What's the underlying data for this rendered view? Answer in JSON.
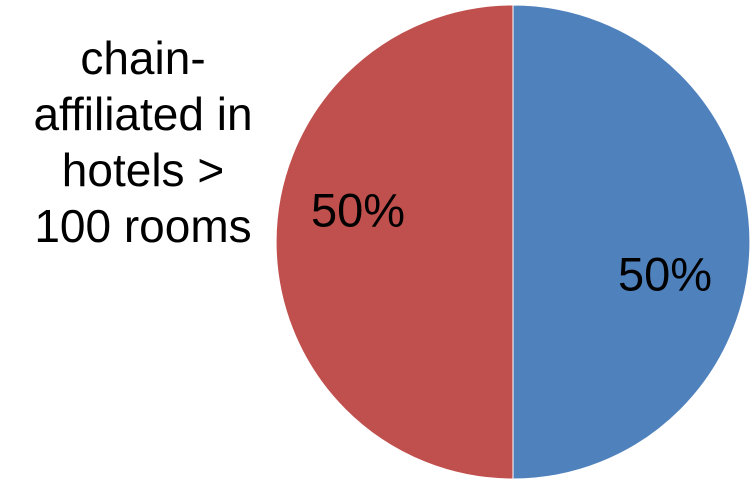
{
  "chart_data": {
    "type": "pie",
    "title_lines": [
      "chain-",
      "affiliated in",
      "hotels >",
      "100 rooms"
    ],
    "slices": [
      {
        "label": "50%",
        "value": 50,
        "color": "#4f81bd"
      },
      {
        "label": "50%",
        "value": 50,
        "color": "#c0504d"
      }
    ],
    "start_angle": "12 o'clock",
    "direction": "clockwise",
    "legend": "none"
  }
}
